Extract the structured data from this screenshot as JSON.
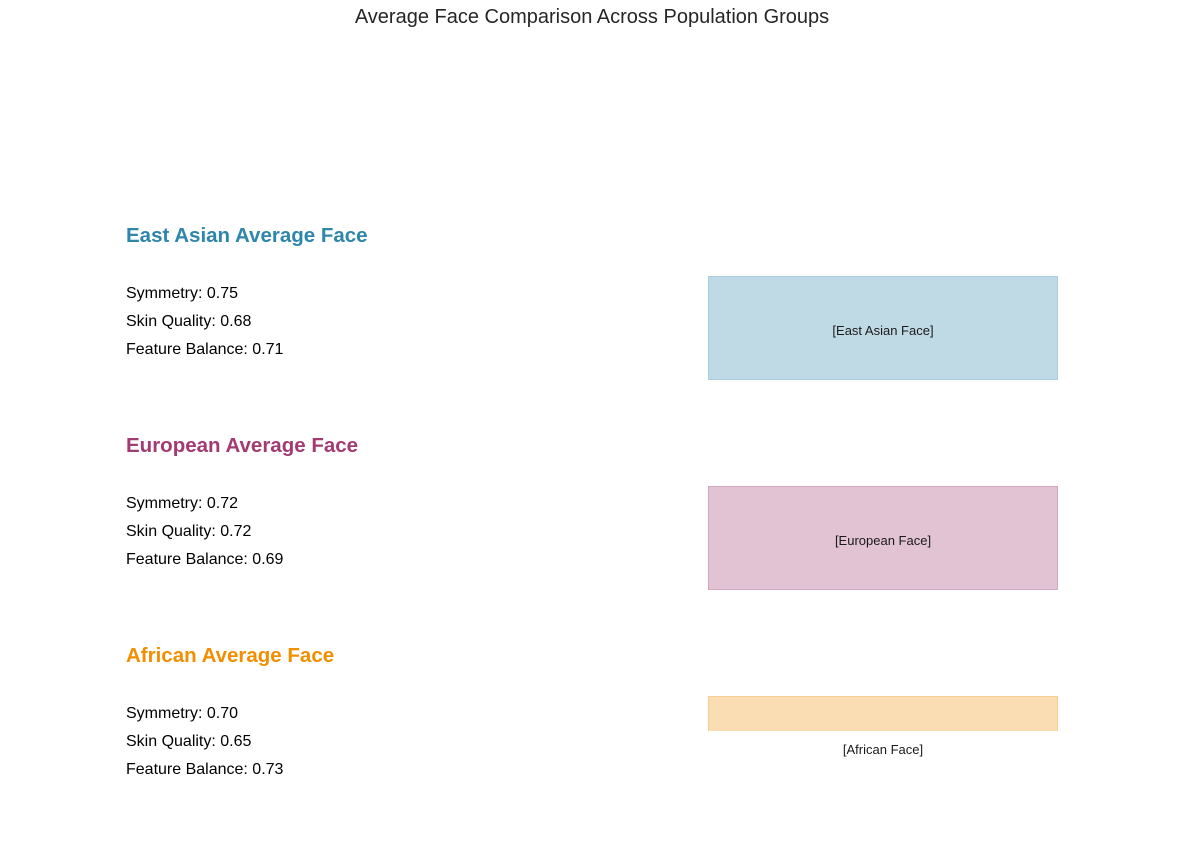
{
  "chart_data": {
    "type": "table",
    "title": "Average Face Comparison Across Population Groups",
    "groups": [
      {
        "title": "East Asian Average Face",
        "color": "#2E86AB",
        "fill": "#C0DAE5",
        "border": "#A8CDDD",
        "image_label": "[East Asian Face]",
        "metrics": [
          {
            "text": "Symmetry: 0.75",
            "name": "Symmetry",
            "value": 0.75
          },
          {
            "text": "Skin Quality: 0.68",
            "name": "Skin Quality",
            "value": 0.68
          },
          {
            "text": "Feature Balance: 0.71",
            "name": "Feature Balance",
            "value": 0.71
          }
        ]
      },
      {
        "title": "European Average Face",
        "color": "#A23B72",
        "fill": "#E2C3D4",
        "border": "#D3A9C1",
        "image_label": "[European Face]",
        "metrics": [
          {
            "text": "Symmetry: 0.72",
            "name": "Symmetry",
            "value": 0.72
          },
          {
            "text": "Skin Quality: 0.72",
            "name": "Skin Quality",
            "value": 0.72
          },
          {
            "text": "Feature Balance: 0.69",
            "name": "Feature Balance",
            "value": 0.69
          }
        ]
      },
      {
        "title": "African Average Face",
        "color": "#F18F01",
        "fill": "#FADDB2",
        "border": "#F7CD92",
        "image_label": "[African Face]",
        "metrics": [
          {
            "text": "Symmetry: 0.70",
            "name": "Symmetry",
            "value": 0.7
          },
          {
            "text": "Skin Quality: 0.65",
            "name": "Skin Quality",
            "value": 0.65
          },
          {
            "text": "Feature Balance: 0.73",
            "name": "Feature Balance",
            "value": 0.73
          }
        ]
      }
    ]
  }
}
